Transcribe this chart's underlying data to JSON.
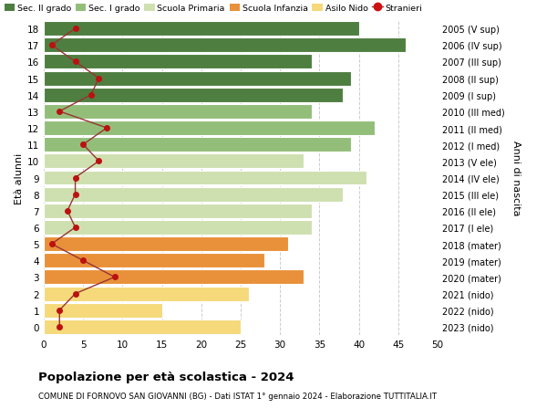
{
  "ages": [
    0,
    1,
    2,
    3,
    4,
    5,
    6,
    7,
    8,
    9,
    10,
    11,
    12,
    13,
    14,
    15,
    16,
    17,
    18
  ],
  "bar_values": [
    25,
    15,
    26,
    33,
    28,
    31,
    34,
    34,
    38,
    41,
    33,
    39,
    42,
    34,
    38,
    39,
    34,
    46,
    40
  ],
  "stranieri": [
    2,
    2,
    4,
    9,
    5,
    1,
    4,
    3,
    4,
    4,
    7,
    5,
    8,
    2,
    6,
    7,
    4,
    1,
    4
  ],
  "right_labels": [
    "2023 (nido)",
    "2022 (nido)",
    "2021 (nido)",
    "2020 (mater)",
    "2019 (mater)",
    "2018 (mater)",
    "2017 (I ele)",
    "2016 (II ele)",
    "2015 (III ele)",
    "2014 (IV ele)",
    "2013 (V ele)",
    "2012 (I med)",
    "2011 (II med)",
    "2010 (III med)",
    "2009 (I sup)",
    "2008 (II sup)",
    "2007 (III sup)",
    "2006 (IV sup)",
    "2005 (V sup)"
  ],
  "bar_colors": [
    "#f5d97a",
    "#f5d97a",
    "#f5d97a",
    "#e8913a",
    "#e8913a",
    "#e8913a",
    "#cfe0b0",
    "#cfe0b0",
    "#cfe0b0",
    "#cfe0b0",
    "#cfe0b0",
    "#93be7a",
    "#93be7a",
    "#93be7a",
    "#4e7e40",
    "#4e7e40",
    "#4e7e40",
    "#4e7e40",
    "#4e7e40"
  ],
  "legend_labels": [
    "Sec. II grado",
    "Sec. I grado",
    "Scuola Primaria",
    "Scuola Infanzia",
    "Asilo Nido",
    "Stranieri"
  ],
  "legend_colors": [
    "#4e7e40",
    "#93be7a",
    "#cfe0b0",
    "#e8913a",
    "#f5d97a",
    "#cc1111"
  ],
  "ylabel": "Età alunni",
  "right_ylabel": "Anni di nascita",
  "title": "Popolazione per età scolastica - 2024",
  "subtitle": "COMUNE DI FORNOVO SAN GIOVANNI (BG) - Dati ISTAT 1° gennaio 2024 - Elaborazione TUTTITALIA.IT",
  "xlim": [
    0,
    50
  ],
  "xticks": [
    0,
    5,
    10,
    15,
    20,
    25,
    30,
    35,
    40,
    45,
    50
  ],
  "grid_color": "#cccccc",
  "bg_color": "#ffffff",
  "stranieri_color": "#bb1111",
  "stranieri_line_color": "#993333"
}
